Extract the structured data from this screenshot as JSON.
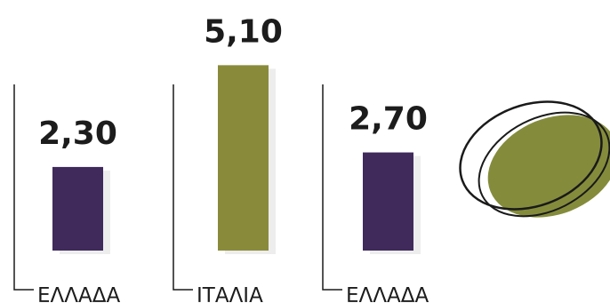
{
  "chart_data": {
    "type": "bar",
    "categories": [
      "ΕΛΛΑΔΑ",
      "ΙΤΑΛΙΑ",
      "ΕΛΛΑΔΑ"
    ],
    "values": [
      2.3,
      5.1,
      2.7
    ],
    "value_labels": [
      "2,30",
      "5,10",
      "2,70"
    ],
    "bar_colors": [
      "#3f2a5b",
      "#8a8b3a",
      "#3f2a5b"
    ],
    "ylim": [
      0,
      5.5
    ],
    "title": "",
    "xlabel": "",
    "ylabel": "",
    "grid": false,
    "legend": "none"
  },
  "decoration": {
    "blob_color": "#848c3c",
    "outline_color": "#1a1a1a",
    "icon": "olive-icon"
  }
}
